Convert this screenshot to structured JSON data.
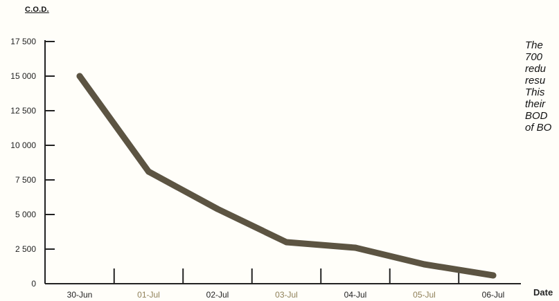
{
  "chart_data": {
    "type": "line",
    "title": "",
    "ylabel": "C.O.D.",
    "xlabel": "Date",
    "categories": [
      "30-Jun",
      "01-Jul",
      "02-Jul",
      "03-Jul",
      "04-Jul",
      "05-Jul",
      "06-Jul"
    ],
    "x_tick_colors": [
      "#222222",
      "#8f8058",
      "#222222",
      "#8f8058",
      "#222222",
      "#8f8058",
      "#222222"
    ],
    "values": [
      15000,
      8100,
      5400,
      3000,
      2600,
      1400,
      600
    ],
    "ylim": [
      0,
      17500
    ],
    "yticks": [
      0,
      2500,
      5000,
      7500,
      10000,
      12500,
      15000,
      17500
    ],
    "ytick_labels": [
      "0",
      "2 500",
      "5 000",
      "7 500",
      "10 000",
      "12 500",
      "15 000",
      "17 500"
    ],
    "grid": false,
    "line_color": "#5c5442",
    "annotation": "The\n700\nredu\nresu\nThis\ntheir\nBOD\nof BO"
  }
}
